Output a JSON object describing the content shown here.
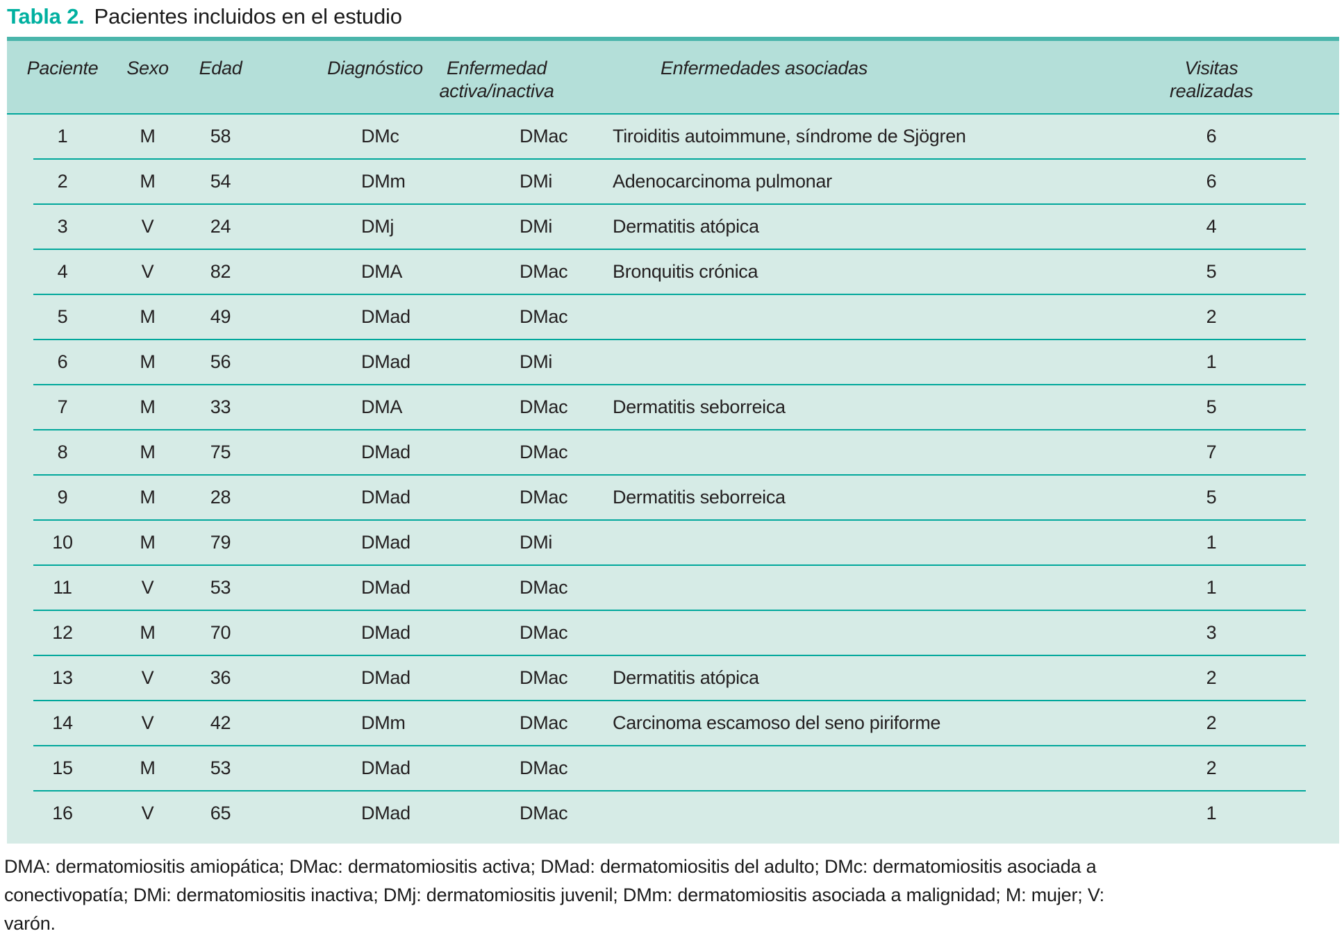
{
  "title": {
    "label": "Tabla 2.",
    "caption": "Pacientes incluidos en el estudio"
  },
  "table": {
    "columns": [
      {
        "key": "paciente",
        "label": "Paciente"
      },
      {
        "key": "sexo",
        "label": "Sexo"
      },
      {
        "key": "edad",
        "label": "Edad"
      },
      {
        "key": "diagnostico",
        "label": "Diagnóstico"
      },
      {
        "key": "enfermedad",
        "label": "Enfermedad\nactiva/inactiva"
      },
      {
        "key": "asociadas",
        "label": "Enfermedades asociadas"
      },
      {
        "key": "visitas",
        "label": "Visitas\nrealizadas"
      }
    ],
    "rows": [
      [
        "1",
        "M",
        "58",
        "DMc",
        "DMac",
        "Tiroiditis autoimmune, síndrome de Sjögren",
        "6"
      ],
      [
        "2",
        "M",
        "54",
        "DMm",
        "DMi",
        "Adenocarcinoma pulmonar",
        "6"
      ],
      [
        "3",
        "V",
        "24",
        "DMj",
        "DMi",
        "Dermatitis atópica",
        "4"
      ],
      [
        "4",
        "V",
        "82",
        "DMA",
        "DMac",
        "Bronquitis crónica",
        "5"
      ],
      [
        "5",
        "M",
        "49",
        "DMad",
        "DMac",
        "",
        "2"
      ],
      [
        "6",
        "M",
        "56",
        "DMad",
        "DMi",
        "",
        "1"
      ],
      [
        "7",
        "M",
        "33",
        "DMA",
        "DMac",
        "Dermatitis seborreica",
        "5"
      ],
      [
        "8",
        "M",
        "75",
        "DMad",
        "DMac",
        "",
        "7"
      ],
      [
        "9",
        "M",
        "28",
        "DMad",
        "DMac",
        "Dermatitis seborreica",
        "5"
      ],
      [
        "10",
        "M",
        "79",
        "DMad",
        "DMi",
        "",
        "1"
      ],
      [
        "11",
        "V",
        "53",
        "DMad",
        "DMac",
        "",
        "1"
      ],
      [
        "12",
        "M",
        "70",
        "DMad",
        "DMac",
        "",
        "3"
      ],
      [
        "13",
        "V",
        "36",
        "DMad",
        "DMac",
        "Dermatitis atópica",
        "2"
      ],
      [
        "14",
        "V",
        "42",
        "DMm",
        "DMac",
        "Carcinoma escamoso del seno piriforme",
        "2"
      ],
      [
        "15",
        "M",
        "53",
        "DMad",
        "DMac",
        "",
        "2"
      ],
      [
        "16",
        "V",
        "65",
        "DMad",
        "DMac",
        "",
        "1"
      ]
    ]
  },
  "footnote": "DMA: dermatomiositis amiopática; DMac: dermatomiositis activa; DMad: dermatomiositis del adulto; DMc: dermatomiositis asociada a conectivopatía; DMi: dermatomiositis inactiva; DMj: dermatomiositis juvenil; DMm: dermatomiositis asociada a malignidad; M: mujer; V: varón.",
  "colors": {
    "accent_teal": "#00b0a0",
    "top_bar": "#4ab5ab",
    "divider": "#00a79b",
    "header_bg": "#b4dfd9",
    "body_bg": "#d6ebe6",
    "text": "#231f20"
  }
}
